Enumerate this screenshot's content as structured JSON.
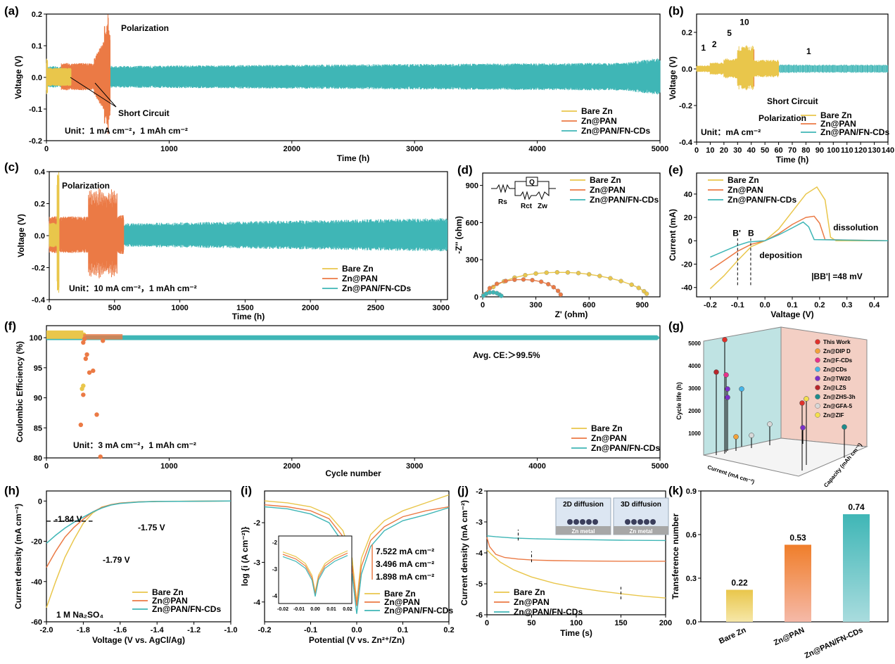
{
  "colors": {
    "bare": "#E9C64B",
    "pan": "#EB7A45",
    "cds": "#3FB6B6",
    "axis": "#000000"
  },
  "legend": [
    "Bare Zn",
    "Zn@PAN",
    "Zn@PAN/FN-CDs"
  ],
  "panels": {
    "a": {
      "label": "(a)",
      "xlabel": "Time (h)",
      "ylabel": "Voltage (V)",
      "unit": "Unit：1 mA cm⁻²，1 mAh cm⁻²",
      "ann_polarization": "Polarization",
      "ann_short": "Short Circuit",
      "xticks": [
        0,
        1000,
        2000,
        3000,
        4000,
        5000
      ],
      "yticks": [
        -0.2,
        -0.1,
        0.0,
        0.1,
        0.2
      ],
      "xlim": [
        0,
        5000
      ],
      "ylim": [
        -0.2,
        0.2
      ]
    },
    "b": {
      "label": "(b)",
      "xlabel": "Time (h)",
      "ylabel": "Voltage (V)",
      "unit": "Unit：mA cm⁻²",
      "ann_polarization": "Polarization",
      "ann_short": "Short Circuit",
      "rates": [
        "1",
        "2",
        "5",
        "10",
        "1"
      ],
      "xticks": [
        0,
        10,
        20,
        30,
        40,
        50,
        60,
        70,
        80,
        90,
        100,
        110,
        120,
        130,
        140
      ],
      "yticks": [
        -0.4,
        -0.2,
        0.0,
        0.2
      ],
      "xlim": [
        0,
        140
      ],
      "ylim": [
        -0.4,
        0.3
      ]
    },
    "c": {
      "label": "(c)",
      "xlabel": "Time (h)",
      "ylabel": "Voltage (V)",
      "unit": "Unit：10 mA cm⁻²，1 mAh cm⁻²",
      "ann_polarization": "Polarization",
      "xticks": [
        0,
        500,
        1000,
        1500,
        2000,
        2500,
        3000
      ],
      "yticks": [
        -0.4,
        -0.2,
        0.0,
        0.2,
        0.4
      ],
      "xlim": [
        0,
        3050
      ],
      "ylim": [
        -0.4,
        0.4
      ]
    },
    "d": {
      "label": "(d)",
      "xlabel": "Z' (ohm)",
      "ylabel": "-Z'' (ohm)",
      "circuit": {
        "rs": "Rs",
        "q": "Q",
        "rct": "Rct",
        "zw": "Zw"
      },
      "xticks": [
        0,
        300,
        600,
        900
      ],
      "yticks": [
        0,
        300,
        600,
        900
      ],
      "xlim": [
        0,
        1000
      ],
      "ylim": [
        0,
        1000
      ],
      "series": [
        {
          "name": "Bare Zn",
          "x": [
            10,
            60,
            120,
            180,
            240,
            300,
            360,
            420,
            480,
            540,
            600,
            660,
            720,
            780,
            840,
            880,
            910,
            925
          ],
          "y": [
            20,
            80,
            125,
            155,
            175,
            188,
            195,
            198,
            197,
            192,
            182,
            168,
            150,
            127,
            98,
            72,
            45,
            25
          ]
        },
        {
          "name": "Zn@PAN",
          "x": [
            5,
            40,
            80,
            130,
            180,
            230,
            280,
            330,
            370,
            400,
            425,
            440
          ],
          "y": [
            15,
            70,
            105,
            128,
            138,
            140,
            135,
            122,
            102,
            78,
            48,
            18
          ]
        },
        {
          "name": "Zn@PAN/FN-CDs",
          "x": [
            5,
            20,
            40,
            60,
            80,
            95,
            105
          ],
          "y": [
            10,
            25,
            35,
            36,
            30,
            18,
            8
          ]
        }
      ]
    },
    "e": {
      "label": "(e)",
      "xlabel": "Valtage (V)",
      "ylabel": "Current (mA)",
      "ann_dissolution": "dissolution",
      "ann_deposition": "deposition",
      "ann_bb": "|BB'| =48 mV",
      "b_prime": "B'",
      "b": "B",
      "xticks": [
        -0.2,
        -0.1,
        0.0,
        0.1,
        0.2,
        0.3,
        0.4
      ],
      "yticks": [
        -40,
        -20,
        0,
        20,
        40
      ],
      "xlim": [
        -0.25,
        0.45
      ],
      "ylim": [
        -48,
        58
      ],
      "series": [
        {
          "name": "Bare Zn",
          "x": [
            -0.2,
            -0.15,
            -0.1,
            -0.05,
            0.0,
            0.05,
            0.1,
            0.15,
            0.19,
            0.22,
            0.24,
            0.26,
            0.45
          ],
          "y": [
            -41,
            -30,
            -17,
            -5,
            0,
            10,
            25,
            40,
            46,
            35,
            3,
            0,
            0
          ]
        },
        {
          "name": "Zn@PAN",
          "x": [
            -0.2,
            -0.15,
            -0.1,
            -0.05,
            0.0,
            0.05,
            0.1,
            0.15,
            0.18,
            0.2,
            0.22,
            0.45
          ],
          "y": [
            -25,
            -17,
            -9,
            -3,
            0,
            6,
            14,
            20,
            21,
            15,
            1,
            0
          ]
        },
        {
          "name": "Zn@PAN/FN-CDs",
          "x": [
            -0.2,
            -0.15,
            -0.1,
            -0.06,
            0.0,
            0.05,
            0.1,
            0.14,
            0.16,
            0.18,
            0.45
          ],
          "y": [
            -14,
            -9,
            -4,
            -1,
            0,
            5,
            11,
            16,
            12,
            1,
            0
          ]
        }
      ]
    },
    "f": {
      "label": "(f)",
      "xlabel": "Cycle number",
      "ylabel": "Coulombic Efficiency (%)",
      "unit": "Unit：3 mA cm⁻²，1 mAh cm⁻²",
      "ann_ce": "Avg. CE:＞99.5%",
      "xticks": [
        0,
        1000,
        2000,
        3000,
        4000,
        5000
      ],
      "yticks": [
        80,
        85,
        90,
        95,
        100
      ],
      "xlim": [
        0,
        5000
      ],
      "ylim": [
        80,
        102
      ],
      "pan_scatter": {
        "x": [
          280,
          300,
          320,
          330,
          350,
          380,
          410,
          440,
          460,
          300,
          310
        ],
        "y": [
          85.5,
          90.5,
          96.5,
          97.2,
          94.2,
          94.5,
          87.2,
          80.2,
          99.5,
          99.2,
          99.8
        ]
      },
      "bare_scatter": {
        "x": [
          290,
          300,
          305
        ],
        "y": [
          91.5,
          92.0,
          100.5
        ]
      }
    },
    "g": {
      "label": "(g)",
      "ylabel": "Cycle life (h)",
      "xlabel": "Current (mA cm⁻²)",
      "zlabel": "Capacity (mAh cm⁻²)",
      "yticks": [
        1000,
        2000,
        3000,
        4000,
        5000
      ],
      "legend": [
        "This Work",
        "Zn@DIP D",
        "Zn@F-CDs",
        "Zn@CDs",
        "Zn@TW20",
        "Zn@LZS",
        "Zn@ZHS-3h",
        "Zn@GFA-5",
        "Zn@ZIF"
      ],
      "legend_colors": [
        "#E0312B",
        "#F2A23A",
        "#E8308A",
        "#45B4E8",
        "#7B2FC9",
        "#B8262A",
        "#1E8C8C",
        "#D8D8D8",
        "#F4E04D"
      ]
    },
    "h": {
      "label": "(h)",
      "xlabel": "Voltage (V vs. AgCl/Ag)",
      "ylabel": "Current density (mA cm⁻²)",
      "electrolyte": "1 M Na₂SO₄",
      "ann1": "-1.84 V",
      "ann2": "-1.75 V",
      "ann3": "-1.79 V",
      "xticks": [
        -2.0,
        -1.8,
        -1.6,
        -1.4,
        -1.2,
        -1.0
      ],
      "yticks": [
        -60,
        -40,
        -20,
        0
      ],
      "xlim": [
        -2.0,
        -1.0
      ],
      "ylim": [
        -60,
        5
      ],
      "series": [
        {
          "name": "Bare Zn",
          "x": [
            -2.0,
            -1.95,
            -1.9,
            -1.85,
            -1.8,
            -1.75,
            -1.7,
            -1.65,
            -1.6,
            -1.5,
            -1.4,
            -1.3,
            -1.0
          ],
          "y": [
            -53,
            -40,
            -28,
            -19,
            -11,
            -6,
            -3,
            -1.8,
            -1,
            -0.4,
            -0.2,
            -0.1,
            0
          ]
        },
        {
          "name": "Zn@PAN",
          "x": [
            -2.0,
            -1.95,
            -1.9,
            -1.85,
            -1.8,
            -1.75,
            -1.7,
            -1.65,
            -1.6,
            -1.5,
            -1.4,
            -1.0
          ],
          "y": [
            -33,
            -25,
            -18,
            -13,
            -9,
            -5.5,
            -3.2,
            -1.8,
            -1,
            -0.4,
            -0.2,
            0
          ]
        },
        {
          "name": "Zn@PAN/FN-CDs",
          "x": [
            -2.0,
            -1.95,
            -1.9,
            -1.85,
            -1.8,
            -1.75,
            -1.7,
            -1.65,
            -1.6,
            -1.5,
            -1.4,
            -1.0
          ],
          "y": [
            -21,
            -17,
            -13.5,
            -10.5,
            -8,
            -5.5,
            -3.5,
            -2,
            -1.2,
            -0.5,
            -0.2,
            0
          ]
        }
      ]
    },
    "i": {
      "label": "(i)",
      "xlabel": "Potential (V vs. Zn²⁺/Zn)",
      "ylabel": "log {i (A cm⁻²)}",
      "ann1": "7.522 mA cm⁻²",
      "ann2": "3.496 mA cm⁻²",
      "ann3": "1.898 mA cm⁻²",
      "xticks": [
        -0.2,
        -0.1,
        0.0,
        0.1,
        0.2
      ],
      "yticks": [
        -4,
        -3,
        -2
      ],
      "xlim": [
        -0.2,
        0.2
      ],
      "ylim": [
        -4.5,
        -1.2
      ],
      "inset_xticks": [
        "-0.02",
        "-0.01",
        "0.00",
        "0.01",
        "0.02"
      ],
      "inset_yticks": [
        "-2",
        "-3",
        "-4"
      ],
      "series": [
        {
          "name": "Bare Zn",
          "x": [
            -0.2,
            -0.15,
            -0.1,
            -0.06,
            -0.03,
            -0.01,
            0.0,
            0.01,
            0.03,
            0.06,
            0.1,
            0.15,
            0.2
          ],
          "y": [
            -1.45,
            -1.5,
            -1.6,
            -1.8,
            -2.2,
            -2.9,
            -4.0,
            -2.9,
            -2.3,
            -1.95,
            -1.7,
            -1.5,
            -1.3
          ]
        },
        {
          "name": "Zn@PAN",
          "x": [
            -0.2,
            -0.15,
            -0.1,
            -0.06,
            -0.03,
            -0.01,
            0.0,
            0.01,
            0.03,
            0.06,
            0.1,
            0.15,
            0.2
          ],
          "y": [
            -1.55,
            -1.6,
            -1.7,
            -1.9,
            -2.35,
            -3.1,
            -4.1,
            -3.1,
            -2.45,
            -2.1,
            -1.85,
            -1.7,
            -1.6
          ]
        },
        {
          "name": "Zn@PAN/FN-CDs",
          "x": [
            -0.2,
            -0.15,
            -0.1,
            -0.06,
            -0.03,
            -0.01,
            0.0,
            0.01,
            0.03,
            0.06,
            0.1,
            0.15,
            0.2
          ],
          "y": [
            -1.6,
            -1.65,
            -1.78,
            -2.0,
            -2.5,
            -3.3,
            -4.3,
            -3.3,
            -2.6,
            -2.2,
            -1.95,
            -1.8,
            -1.62
          ]
        }
      ]
    },
    "j": {
      "label": "(j)",
      "xlabel": "Time (s)",
      "ylabel": "Current density (mA cm⁻²)",
      "box1_title": "2D diffusion",
      "box2_title": "3D diffusion",
      "box_metal": "Zn metal",
      "xticks": [
        0,
        50,
        100,
        150,
        200
      ],
      "yticks": [
        -6,
        -5,
        -4,
        -3,
        -2
      ],
      "xlim": [
        0,
        200
      ],
      "ylim": [
        -6,
        -2
      ],
      "series": [
        {
          "name": "Bare Zn",
          "x": [
            0,
            5,
            15,
            30,
            50,
            75,
            100,
            125,
            150,
            175,
            200
          ],
          "y": [
            -3.9,
            -4.05,
            -4.3,
            -4.55,
            -4.78,
            -4.98,
            -5.12,
            -5.23,
            -5.32,
            -5.4,
            -5.46
          ]
        },
        {
          "name": "Zn@PAN",
          "x": [
            0,
            3,
            10,
            20,
            35,
            50,
            75,
            100,
            150,
            200
          ],
          "y": [
            -3.5,
            -3.8,
            -4.05,
            -4.15,
            -4.2,
            -4.23,
            -4.25,
            -4.26,
            -4.27,
            -4.27
          ]
        },
        {
          "name": "Zn@PAN/FN-CDs",
          "x": [
            0,
            10,
            30,
            60,
            100,
            150,
            200
          ],
          "y": [
            -3.45,
            -3.48,
            -3.52,
            -3.55,
            -3.57,
            -3.59,
            -3.6
          ]
        }
      ]
    },
    "k": {
      "label": "(k)",
      "ylabel": "Transference number",
      "categories": [
        "Bare Zn",
        "Zn@PAN",
        "Zn@PAN/FN-CDs"
      ],
      "values": [
        0.22,
        0.53,
        0.74
      ],
      "value_labels": [
        "0.22",
        "0.53",
        "0.74"
      ],
      "yticks": [
        0.0,
        0.3,
        0.6,
        0.9
      ],
      "ylim": [
        0,
        0.9
      ]
    }
  },
  "chart_data": [
    {
      "type": "line",
      "panel": "a",
      "xlabel": "Time (h)",
      "ylabel": "Voltage (V)",
      "xlim": [
        0,
        5000
      ],
      "ylim": [
        -0.2,
        0.2
      ],
      "series": [
        {
          "name": "Bare Zn"
        },
        {
          "name": "Zn@PAN"
        },
        {
          "name": "Zn@PAN/FN-CDs"
        }
      ]
    },
    {
      "type": "line",
      "panel": "b",
      "xlabel": "Time (h)",
      "ylabel": "Voltage (V)",
      "xlim": [
        0,
        140
      ],
      "ylim": [
        -0.4,
        0.3
      ]
    },
    {
      "type": "line",
      "panel": "c",
      "xlabel": "Time (h)",
      "ylabel": "Voltage (V)",
      "xlim": [
        0,
        3050
      ],
      "ylim": [
        -0.4,
        0.4
      ]
    },
    {
      "type": "scatter",
      "panel": "d",
      "xlabel": "Z' (ohm)",
      "ylabel": "-Z'' (ohm)"
    },
    {
      "type": "line",
      "panel": "e",
      "xlabel": "Valtage (V)",
      "ylabel": "Current (mA)"
    },
    {
      "type": "scatter",
      "panel": "f",
      "xlabel": "Cycle number",
      "ylabel": "Coulombic Efficiency (%)"
    },
    {
      "type": "scatter",
      "panel": "g",
      "ylabel": "Cycle life (h)"
    },
    {
      "type": "line",
      "panel": "h",
      "xlabel": "Voltage (V vs. AgCl/Ag)",
      "ylabel": "Current density (mA cm⁻²)"
    },
    {
      "type": "line",
      "panel": "i",
      "xlabel": "Potential (V vs. Zn²⁺/Zn)",
      "ylabel": "log {i (A cm⁻²)}"
    },
    {
      "type": "line",
      "panel": "j",
      "xlabel": "Time (s)",
      "ylabel": "Current density (mA cm⁻²)"
    },
    {
      "type": "bar",
      "panel": "k",
      "categories": [
        "Bare Zn",
        "Zn@PAN",
        "Zn@PAN/FN-CDs"
      ],
      "values": [
        0.22,
        0.53,
        0.74
      ],
      "ylabel": "Transference number",
      "ylim": [
        0,
        0.9
      ]
    }
  ]
}
